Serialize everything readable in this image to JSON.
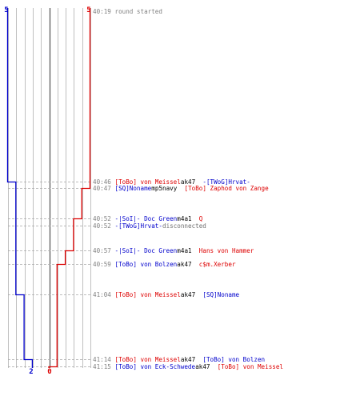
{
  "colors": {
    "blue": "#0000cc",
    "red": "#dd0000",
    "time": "#808080",
    "neutral": "#000000",
    "disconnect": "#707070",
    "grid": "#c0c0c0",
    "center": "#505050",
    "dash": "#a8a8a8"
  },
  "counts": {
    "blue_start": "5",
    "red_start": "5",
    "blue_end": "2",
    "red_end": "0"
  },
  "events": [
    {
      "time": "40:19",
      "parts": [
        {
          "text": "round started",
          "c": "time"
        }
      ]
    },
    {
      "time": "40:46",
      "parts": [
        {
          "text": "[ToBo] von Meissel",
          "c": "red"
        },
        {
          "text": " ak47 ",
          "c": "neutral"
        },
        {
          "text": "-[TWoG]Hrvat-",
          "c": "blue"
        }
      ]
    },
    {
      "time": "40:47",
      "parts": [
        {
          "text": "[SQ]Noname",
          "c": "blue"
        },
        {
          "text": " mp5navy ",
          "c": "neutral"
        },
        {
          "text": "[ToBo] Zaphod von Zange",
          "c": "red"
        }
      ]
    },
    {
      "time": "40:52",
      "parts": [
        {
          "text": "-|SoI|- Doc Green",
          "c": "blue"
        },
        {
          "text": " m4a1 ",
          "c": "neutral"
        },
        {
          "text": "Q",
          "c": "red"
        }
      ]
    },
    {
      "time": "40:52",
      "parts": [
        {
          "text": "-[TWoG]Hrvat-",
          "c": "blue"
        },
        {
          "text": " disconnected",
          "c": "disconnect"
        }
      ]
    },
    {
      "time": "40:57",
      "parts": [
        {
          "text": "-|SoI|- Doc Green",
          "c": "blue"
        },
        {
          "text": " m4a1 ",
          "c": "neutral"
        },
        {
          "text": "Hans von Hammer",
          "c": "red"
        }
      ]
    },
    {
      "time": "40:59",
      "parts": [
        {
          "text": "[ToBo] von Bolzen",
          "c": "blue"
        },
        {
          "text": " ak47 ",
          "c": "neutral"
        },
        {
          "text": "c$m.Xerber",
          "c": "red"
        }
      ]
    },
    {
      "time": "41:04",
      "parts": [
        {
          "text": "[ToBo] von Meissel",
          "c": "red"
        },
        {
          "text": " ak47 ",
          "c": "neutral"
        },
        {
          "text": "[SQ]Noname",
          "c": "blue"
        }
      ]
    },
    {
      "time": "41:14",
      "parts": [
        {
          "text": "[ToBo] von Meissel",
          "c": "red"
        },
        {
          "text": " ak47 ",
          "c": "neutral"
        },
        {
          "text": "[ToBo] von Bolzen",
          "c": "blue"
        }
      ]
    },
    {
      "time": "41:15",
      "parts": [
        {
          "text": "[ToBo] von Eck-Schwede",
          "c": "blue"
        },
        {
          "text": " ak47 ",
          "c": "neutral"
        },
        {
          "text": "[ToBo] von Meissel",
          "c": "red"
        }
      ]
    }
  ],
  "blue_steps": [
    {
      "time": "40:19",
      "alive": 5
    },
    {
      "time": "40:46",
      "alive": 4
    },
    {
      "time": "41:04",
      "alive": 3
    },
    {
      "time": "41:14",
      "alive": 2
    }
  ],
  "red_steps": [
    {
      "time": "40:19",
      "alive": 5
    },
    {
      "time": "40:47",
      "alive": 4
    },
    {
      "time": "40:52",
      "alive": 3
    },
    {
      "time": "40:57",
      "alive": 2
    },
    {
      "time": "40:59",
      "alive": 1
    },
    {
      "time": "41:15",
      "alive": 0
    }
  ]
}
